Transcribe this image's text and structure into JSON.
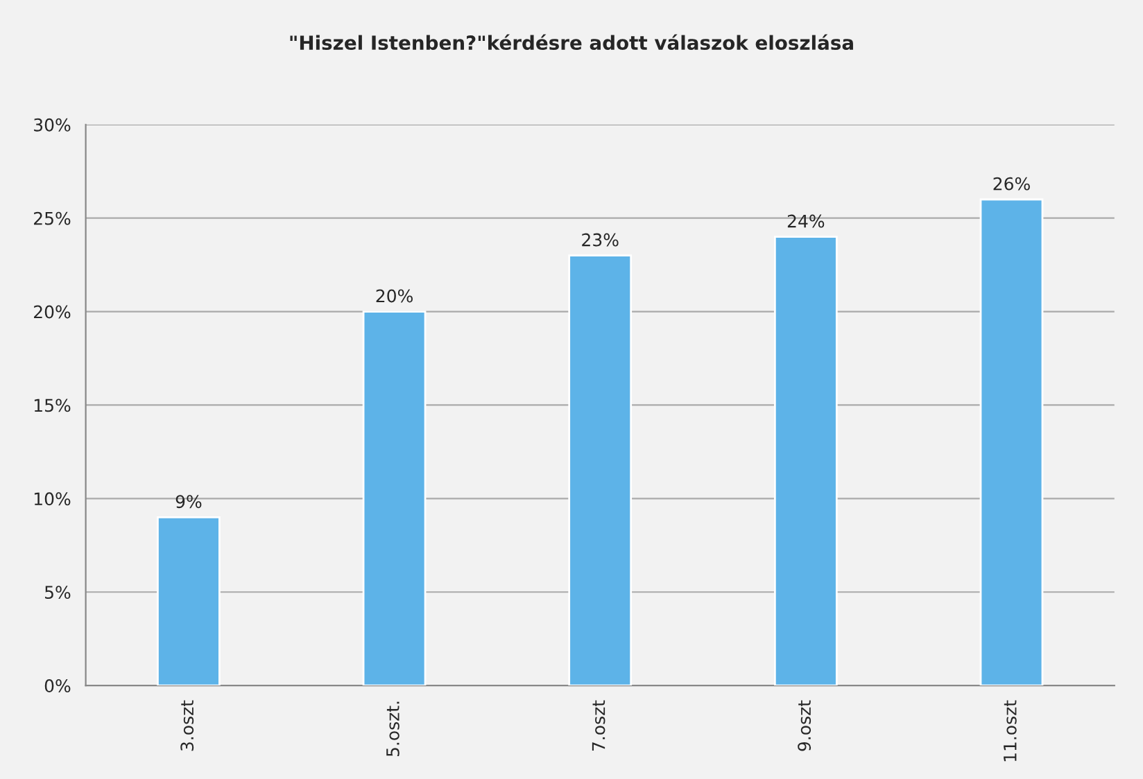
{
  "chart_data": {
    "type": "bar",
    "title": "\"Hiszel Istenben?\"kérdésre adott válaszok eloszlása",
    "categories": [
      "3.oszt",
      "5.oszt.",
      "7.oszt",
      "9.oszt",
      "11.oszt"
    ],
    "values": [
      9,
      20,
      23,
      24,
      26
    ],
    "value_labels": [
      "9%",
      "20%",
      "23%",
      "24%",
      "26%"
    ],
    "color": "#5db3e8",
    "ylim": [
      0,
      30
    ],
    "yticks": [
      {
        "value": 0,
        "label": "0%"
      },
      {
        "value": 5,
        "label": "5%"
      },
      {
        "value": 10,
        "label": "10%"
      },
      {
        "value": 15,
        "label": "15%"
      },
      {
        "value": 20,
        "label": "20%"
      },
      {
        "value": 25,
        "label": "25%"
      },
      {
        "value": 30,
        "label": "30%"
      }
    ],
    "grid": "y"
  }
}
